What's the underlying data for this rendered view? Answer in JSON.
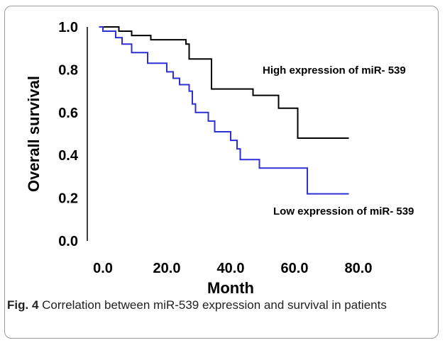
{
  "caption": {
    "label": "Fig. 4",
    "text": "Correlation between miR-539 expression and survival in patients"
  },
  "chart_data": {
    "type": "line",
    "title": "",
    "xlabel": "Month",
    "ylabel": "Overall survival",
    "xlim": [
      0,
      80
    ],
    "ylim": [
      0,
      1
    ],
    "x_ticks": [
      "0.0",
      "20.0",
      "40.0",
      "60.0",
      "80.0"
    ],
    "y_ticks": [
      "0.0",
      "0.2",
      "0.4",
      "0.6",
      "0.8",
      "1.0"
    ],
    "grid": false,
    "series": [
      {
        "name": "High expression of miR- 539",
        "color": "#000000",
        "step": [
          [
            -1.2,
            1.0
          ],
          [
            5,
            1.0
          ],
          [
            5,
            0.98
          ],
          [
            9,
            0.98
          ],
          [
            9,
            0.96
          ],
          [
            15,
            0.96
          ],
          [
            15,
            0.94
          ],
          [
            26,
            0.94
          ],
          [
            26,
            0.92
          ],
          [
            27,
            0.92
          ],
          [
            27,
            0.85
          ],
          [
            34,
            0.85
          ],
          [
            34,
            0.71
          ],
          [
            47,
            0.71
          ],
          [
            47,
            0.68
          ],
          [
            55,
            0.68
          ],
          [
            55,
            0.62
          ],
          [
            61,
            0.62
          ],
          [
            61,
            0.48
          ],
          [
            77,
            0.48
          ]
        ]
      },
      {
        "name": "Low expression of miR- 539",
        "color": "#2f2fd6",
        "step": [
          [
            -1.2,
            1.0
          ],
          [
            0,
            1.0
          ],
          [
            0,
            0.98
          ],
          [
            4,
            0.98
          ],
          [
            4,
            0.95
          ],
          [
            6,
            0.95
          ],
          [
            6,
            0.92
          ],
          [
            9,
            0.92
          ],
          [
            9,
            0.88
          ],
          [
            14,
            0.88
          ],
          [
            14,
            0.83
          ],
          [
            20,
            0.83
          ],
          [
            20,
            0.79
          ],
          [
            22,
            0.79
          ],
          [
            22,
            0.76
          ],
          [
            24,
            0.76
          ],
          [
            24,
            0.73
          ],
          [
            27,
            0.73
          ],
          [
            27,
            0.7
          ],
          [
            28,
            0.7
          ],
          [
            28,
            0.64
          ],
          [
            29,
            0.64
          ],
          [
            29,
            0.6
          ],
          [
            33,
            0.6
          ],
          [
            33,
            0.56
          ],
          [
            35,
            0.56
          ],
          [
            35,
            0.51
          ],
          [
            40,
            0.51
          ],
          [
            40,
            0.47
          ],
          [
            42,
            0.47
          ],
          [
            42,
            0.43
          ],
          [
            43,
            0.43
          ],
          [
            43,
            0.38
          ],
          [
            49,
            0.38
          ],
          [
            49,
            0.34
          ],
          [
            64,
            0.34
          ],
          [
            64,
            0.22
          ],
          [
            77,
            0.22
          ]
        ]
      }
    ]
  }
}
